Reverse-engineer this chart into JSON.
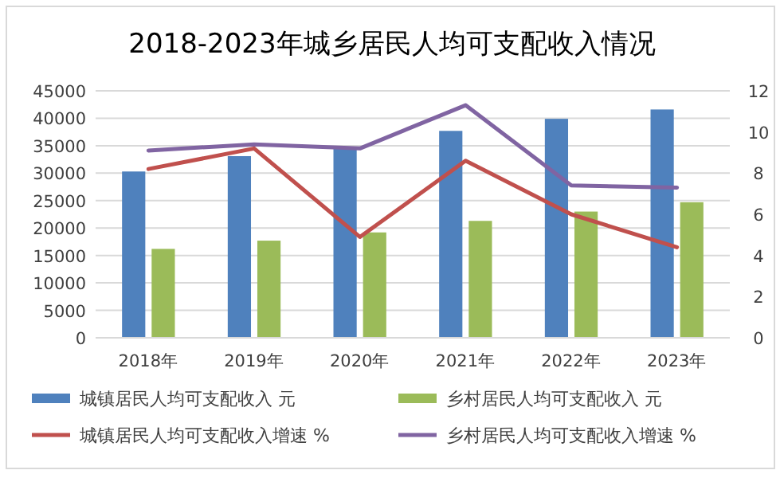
{
  "chart_data": {
    "type": "bar",
    "title": "2018-2023年城乡居民人均可支配收入情况",
    "categories": [
      "2018年",
      "2019年",
      "2020年",
      "2021年",
      "2022年",
      "2023年"
    ],
    "series": [
      {
        "name": "城镇居民人均可支配收入 元",
        "color": "#4f81bd",
        "values": [
          30300,
          33100,
          34500,
          37700,
          39900,
          41600
        ]
      },
      {
        "name": "乡村居民人均可支配收入 元",
        "color": "#9bbb59",
        "values": [
          16200,
          17700,
          19200,
          21300,
          23000,
          24700
        ]
      },
      {
        "name": "城镇居民人均可支配收入增速 %",
        "type": "line",
        "axis": "y2",
        "color": "#c0504d",
        "values": [
          8.2,
          9.2,
          4.9,
          8.6,
          6.0,
          4.4
        ]
      },
      {
        "name": "乡村居民人均可支配收入增速 %",
        "type": "line",
        "axis": "y2",
        "color": "#8064a2",
        "values": [
          9.1,
          9.4,
          9.2,
          11.3,
          7.4,
          7.3
        ]
      }
    ],
    "ylim": [
      0,
      45000
    ],
    "yticks": [
      0,
      5000,
      10000,
      15000,
      20000,
      25000,
      30000,
      35000,
      40000,
      45000
    ],
    "y2lim": [
      0,
      12
    ],
    "y2ticks": [
      0,
      2,
      4,
      6,
      8,
      10,
      12
    ],
    "grid": "y",
    "legend": "bottom",
    "line_style": "solid",
    "marker": "none"
  }
}
